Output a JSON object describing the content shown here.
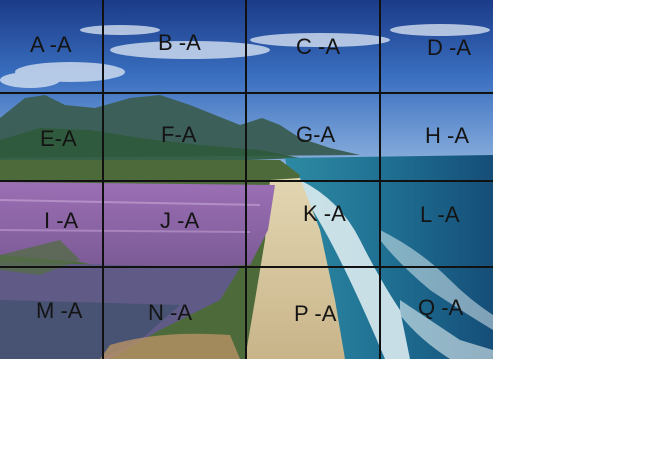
{
  "image": {
    "description_colors": {
      "sky_top": "#1d3f8e",
      "sky_mid": "#3f78c8",
      "sky_light": "#9fc0e4",
      "mountain": "#3b5a58",
      "lagoon": "#a07dbd",
      "sand": "#d8c79e",
      "sea": "#1b6e93",
      "foam": "#e8f3f6",
      "grid_line": "#111111"
    }
  },
  "grid": {
    "rows": 4,
    "cols": 4,
    "cells": [
      {
        "id": "A",
        "label": "A -A"
      },
      {
        "id": "B",
        "label": "B -A"
      },
      {
        "id": "C",
        "label": "C -A"
      },
      {
        "id": "D",
        "label": "D -A"
      },
      {
        "id": "E",
        "label": "E-A"
      },
      {
        "id": "F",
        "label": "F-A"
      },
      {
        "id": "G",
        "label": "G-A"
      },
      {
        "id": "H",
        "label": "H -A"
      },
      {
        "id": "I",
        "label": "I -A"
      },
      {
        "id": "J",
        "label": "J -A"
      },
      {
        "id": "K",
        "label": "K -A"
      },
      {
        "id": "L",
        "label": "L -A"
      },
      {
        "id": "M",
        "label": "M -A"
      },
      {
        "id": "N",
        "label": "N -A"
      },
      {
        "id": "P",
        "label": "P -A"
      },
      {
        "id": "Q",
        "label": "Q -A"
      }
    ]
  }
}
